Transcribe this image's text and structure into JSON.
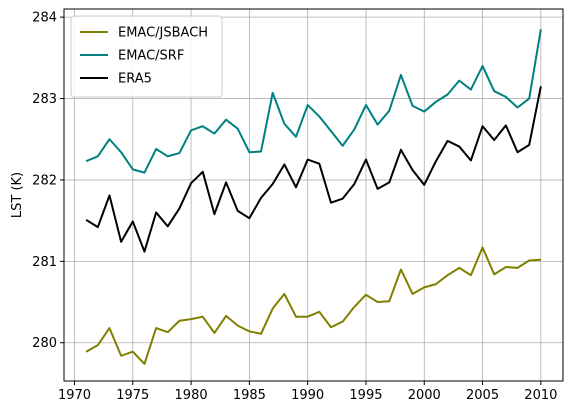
{
  "chart_data": {
    "type": "line",
    "title": "",
    "xlabel": "",
    "ylabel": "LST (K)",
    "xlim": [
      1969.1,
      2011.9
    ],
    "ylim": [
      279.53,
      284.1
    ],
    "xticks": [
      1970,
      1975,
      1980,
      1985,
      1990,
      1995,
      2000,
      2005,
      2010
    ],
    "yticks": [
      280,
      281,
      282,
      283,
      284
    ],
    "grid": true,
    "legend_position": "upper-left",
    "x": [
      1971,
      1972,
      1973,
      1974,
      1975,
      1976,
      1977,
      1978,
      1979,
      1980,
      1981,
      1982,
      1983,
      1984,
      1985,
      1986,
      1987,
      1988,
      1989,
      1990,
      1991,
      1992,
      1993,
      1994,
      1995,
      1996,
      1997,
      1998,
      1999,
      2000,
      2001,
      2002,
      2003,
      2004,
      2005,
      2006,
      2007,
      2008,
      2009,
      2010
    ],
    "series": [
      {
        "name": "EMAC/JSBACH",
        "color": "#808000",
        "values": [
          279.89,
          279.97,
          280.18,
          279.84,
          279.89,
          279.74,
          280.18,
          280.13,
          280.27,
          280.29,
          280.32,
          280.12,
          280.33,
          280.21,
          280.14,
          280.11,
          280.42,
          280.6,
          280.32,
          280.32,
          280.38,
          280.19,
          280.26,
          280.44,
          280.59,
          280.5,
          280.51,
          280.9,
          280.6,
          280.68,
          280.72,
          280.83,
          280.92,
          280.83,
          281.17,
          280.84,
          280.93,
          280.92,
          281.01,
          281.02
        ]
      },
      {
        "name": "EMAC/SRF",
        "color": "#008080",
        "values": [
          282.23,
          282.29,
          282.5,
          282.34,
          282.13,
          282.09,
          282.38,
          282.29,
          282.33,
          282.61,
          282.66,
          282.57,
          282.74,
          282.63,
          282.34,
          282.35,
          283.07,
          282.69,
          282.53,
          282.92,
          282.78,
          282.6,
          282.42,
          282.62,
          282.92,
          282.68,
          282.85,
          283.29,
          282.91,
          282.84,
          282.96,
          283.05,
          283.22,
          283.11,
          283.4,
          283.09,
          283.02,
          282.89,
          283.0,
          283.85
        ]
      },
      {
        "name": "ERA5",
        "color": "#000000",
        "values": [
          281.51,
          281.42,
          281.81,
          281.24,
          281.49,
          281.12,
          281.6,
          281.43,
          281.65,
          281.96,
          282.1,
          281.58,
          281.97,
          281.62,
          281.53,
          281.78,
          281.95,
          282.19,
          281.91,
          282.25,
          282.2,
          281.72,
          281.77,
          281.95,
          282.25,
          281.89,
          281.97,
          282.37,
          282.12,
          281.94,
          282.23,
          282.48,
          282.41,
          282.24,
          282.66,
          282.49,
          282.67,
          282.34,
          282.43,
          283.15
        ]
      }
    ]
  }
}
